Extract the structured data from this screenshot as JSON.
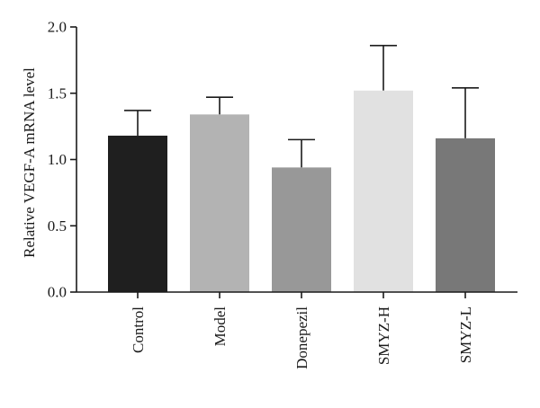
{
  "chart_data": {
    "type": "bar",
    "title": "",
    "xlabel": "",
    "ylabel": "Relative VEGF-A mRNA level",
    "ylim": [
      0,
      2.0
    ],
    "yticks": [
      "0.0",
      "0.5",
      "1.0",
      "1.5",
      "2.0"
    ],
    "ytick_values": [
      0,
      0.5,
      1.0,
      1.5,
      2.0
    ],
    "categories": [
      "Control",
      "Model",
      "Donepezil",
      "SMYZ-H",
      "SMYZ-L"
    ],
    "values": [
      1.18,
      1.34,
      0.94,
      1.52,
      1.16
    ],
    "error_upper": [
      0.19,
      0.13,
      0.21,
      0.34,
      0.38
    ],
    "colors": [
      "#1f1f1f",
      "#b3b3b3",
      "#989898",
      "#e1e1e1",
      "#787878"
    ],
    "grid": false,
    "legend": "none"
  }
}
